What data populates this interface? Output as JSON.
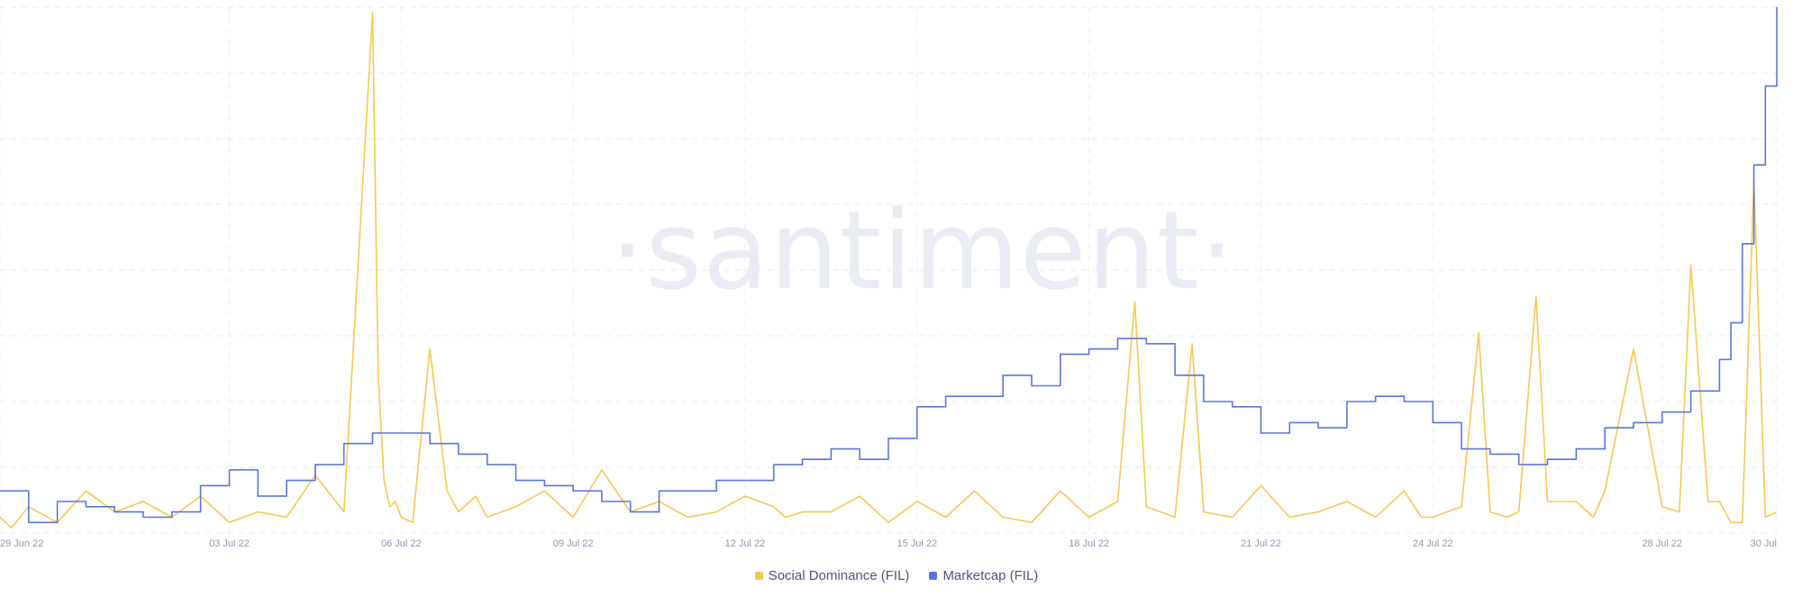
{
  "watermark": "·santiment·",
  "chart_data": {
    "type": "line",
    "title": "",
    "xlabel": "",
    "ylabel": "",
    "grid": true,
    "x_tick_labels": [
      "29 Jun 22",
      "03 Jul 22",
      "06 Jul 22",
      "09 Jul 22",
      "12 Jul 22",
      "15 Jul 22",
      "18 Jul 22",
      "21 Jul 22",
      "24 Jul 22",
      "28 Jul 22",
      "30 Jul"
    ],
    "x_range": [
      "29 Jun 22",
      "30 Jul 22"
    ],
    "legend_position": "bottom-center",
    "series": [
      {
        "name": "Social Dominance (FIL)",
        "color": "#f5c952",
        "axis": "left",
        "scale": "relative (no y-axis labels shown)",
        "ylim": [
          0,
          100
        ],
        "x_days": [
          0.0,
          0.2,
          0.5,
          1.0,
          1.5,
          2.0,
          2.5,
          3.0,
          3.5,
          4.0,
          4.5,
          5.0,
          5.5,
          6.0,
          6.5,
          6.6,
          6.7,
          6.8,
          6.9,
          7.0,
          7.2,
          7.5,
          7.8,
          8.0,
          8.3,
          8.5,
          9.0,
          9.5,
          10.0,
          10.5,
          11.0,
          11.5,
          12.0,
          12.5,
          13.0,
          13.5,
          13.7,
          14.0,
          14.5,
          15.0,
          15.5,
          16.0,
          16.5,
          17.0,
          17.5,
          18.0,
          18.5,
          19.0,
          19.5,
          19.8,
          20.0,
          20.5,
          20.8,
          21.0,
          21.5,
          22.0,
          22.5,
          23.0,
          23.5,
          24.0,
          24.5,
          24.8,
          25.0,
          25.5,
          25.8,
          26.0,
          26.3,
          26.5,
          26.8,
          27.0,
          27.5,
          27.8,
          28.0,
          28.5,
          29.0,
          29.3,
          29.5,
          29.8,
          30.0,
          30.2,
          30.4,
          30.6,
          30.8,
          31.0
        ],
        "values": [
          3,
          1,
          5,
          2,
          8,
          4,
          6,
          3,
          7,
          2,
          4,
          3,
          11,
          4,
          99,
          30,
          10,
          5,
          6,
          3,
          2,
          35,
          8,
          4,
          7,
          3,
          5,
          8,
          3,
          12,
          4,
          6,
          3,
          4,
          7,
          5,
          3,
          4,
          4,
          7,
          2,
          6,
          3,
          8,
          3,
          2,
          8,
          3,
          6,
          44,
          5,
          3,
          36,
          4,
          3,
          9,
          3,
          4,
          6,
          3,
          8,
          3,
          3,
          5,
          38,
          4,
          3,
          4,
          45,
          6,
          6,
          3,
          8,
          35,
          5,
          4,
          51,
          6,
          6,
          2,
          2,
          67,
          3,
          4
        ]
      },
      {
        "name": "Marketcap (FIL)",
        "color": "#5b75e0",
        "axis": "right",
        "scale": "relative (no y-axis labels shown)",
        "ylim": [
          0,
          100
        ],
        "x_days": [
          0.0,
          0.5,
          1.0,
          1.5,
          2.0,
          2.5,
          3.0,
          3.5,
          4.0,
          4.5,
          5.0,
          5.5,
          6.0,
          6.5,
          7.0,
          7.5,
          8.0,
          8.5,
          9.0,
          9.5,
          10.0,
          10.5,
          11.0,
          11.5,
          12.0,
          12.5,
          13.0,
          13.5,
          14.0,
          14.5,
          15.0,
          15.5,
          16.0,
          16.5,
          17.0,
          17.5,
          18.0,
          18.5,
          19.0,
          19.5,
          20.0,
          20.5,
          21.0,
          21.5,
          22.0,
          22.5,
          23.0,
          23.5,
          24.0,
          24.5,
          25.0,
          25.5,
          26.0,
          26.5,
          27.0,
          27.5,
          28.0,
          28.5,
          29.0,
          29.5,
          30.0,
          30.2,
          30.4,
          30.6,
          30.8,
          31.0
        ],
        "values": [
          8,
          2,
          6,
          5,
          4,
          3,
          4,
          9,
          12,
          7,
          10,
          13,
          17,
          19,
          19,
          17,
          15,
          13,
          10,
          9,
          8,
          6,
          4,
          8,
          8,
          10,
          10,
          13,
          14,
          16,
          14,
          18,
          24,
          26,
          26,
          30,
          28,
          34,
          35,
          37,
          36,
          30,
          25,
          24,
          19,
          21,
          20,
          25,
          26,
          25,
          21,
          16,
          15,
          13,
          14,
          16,
          20,
          21,
          23,
          27,
          33,
          40,
          55,
          70,
          85,
          100
        ]
      }
    ]
  }
}
